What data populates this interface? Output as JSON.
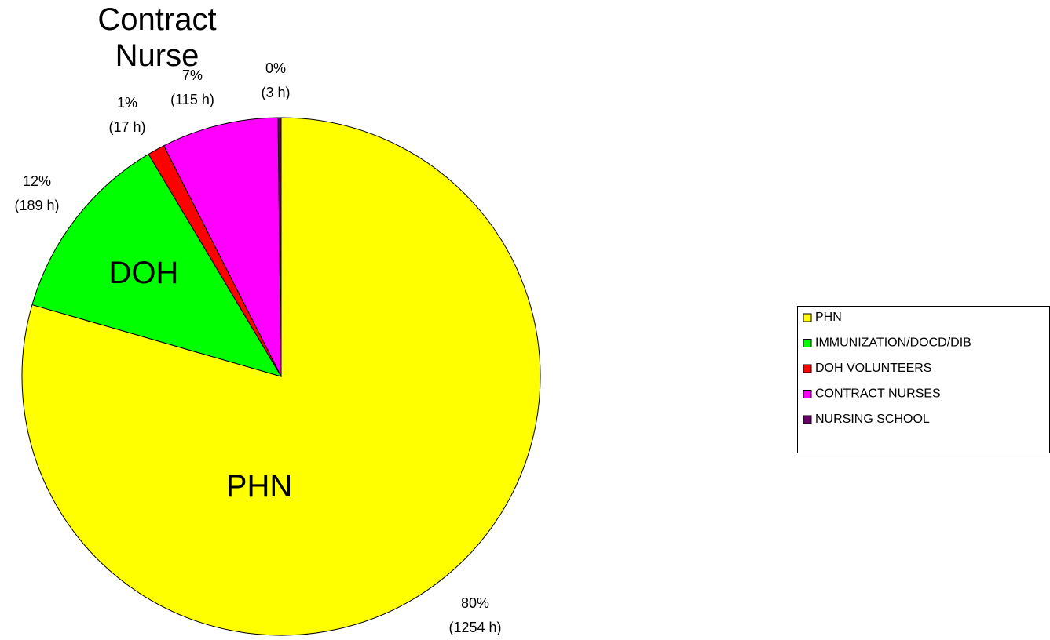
{
  "chart_data": {
    "type": "pie",
    "categories": [
      "PHN",
      "IMMUNIZATION/DOCD/DIB",
      "DOH VOLUNTEERS",
      "CONTRACT NURSES",
      "NURSING SCHOOL"
    ],
    "values": [
      1254,
      189,
      17,
      115,
      3
    ],
    "value_labels": [
      [
        "80%",
        "(1254 h)"
      ],
      [
        "12%",
        "(189 h)"
      ],
      [
        "1%",
        "(17 h)"
      ],
      [
        "7%",
        "(115 h)"
      ],
      [
        "0%",
        "(3 h)"
      ]
    ],
    "colors": [
      "#ffff00",
      "#00ff00",
      "#ff0000",
      "#ff00ff",
      "#660066"
    ],
    "annotations": [
      {
        "text": "PHN"
      },
      {
        "text": "DOH"
      },
      {
        "text": "Contract Nurse"
      }
    ],
    "legend": "right"
  }
}
